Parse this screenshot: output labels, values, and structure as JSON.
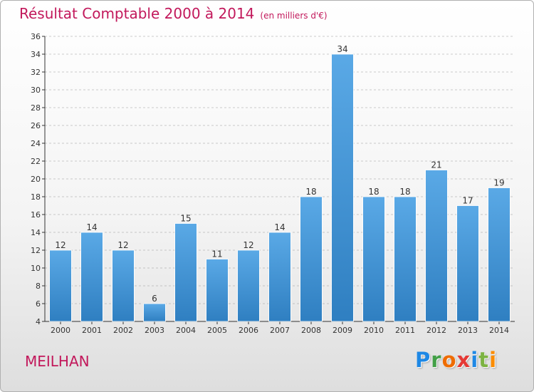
{
  "header": {
    "title": "Résultat Comptable 2000 à 2014",
    "unit": "(en milliers d'€)"
  },
  "footer": {
    "commune": "MEILHAN",
    "logo_letters": [
      "P",
      "r",
      "o",
      "x",
      "i",
      "t",
      "i"
    ],
    "logo_colors": [
      "#1e88e5",
      "#43a047",
      "#ef6c00",
      "#e53935",
      "#1e88e5",
      "#7cb342",
      "#fb8c00"
    ]
  },
  "colors": {
    "accent": "#c2185b",
    "bar_light": "#5aa9e6",
    "bar_dark": "#2f7fc1",
    "grid": "#999999"
  },
  "chart_data": {
    "type": "bar",
    "title": "Résultat Comptable 2000 à 2014",
    "categories": [
      "2000",
      "2001",
      "2002",
      "2003",
      "2004",
      "2005",
      "2006",
      "2007",
      "2008",
      "2009",
      "2010",
      "2011",
      "2012",
      "2013",
      "2014"
    ],
    "values": [
      12,
      14,
      12,
      6,
      15,
      11,
      12,
      14,
      18,
      34,
      18,
      18,
      21,
      17,
      19
    ],
    "ylim": [
      4,
      36
    ],
    "yticks": [
      4,
      6,
      8,
      10,
      12,
      14,
      16,
      18,
      20,
      22,
      24,
      26,
      28,
      30,
      32,
      34,
      36
    ],
    "grid": true,
    "grid_style": "dashed",
    "xlabel": "",
    "ylabel": ""
  }
}
